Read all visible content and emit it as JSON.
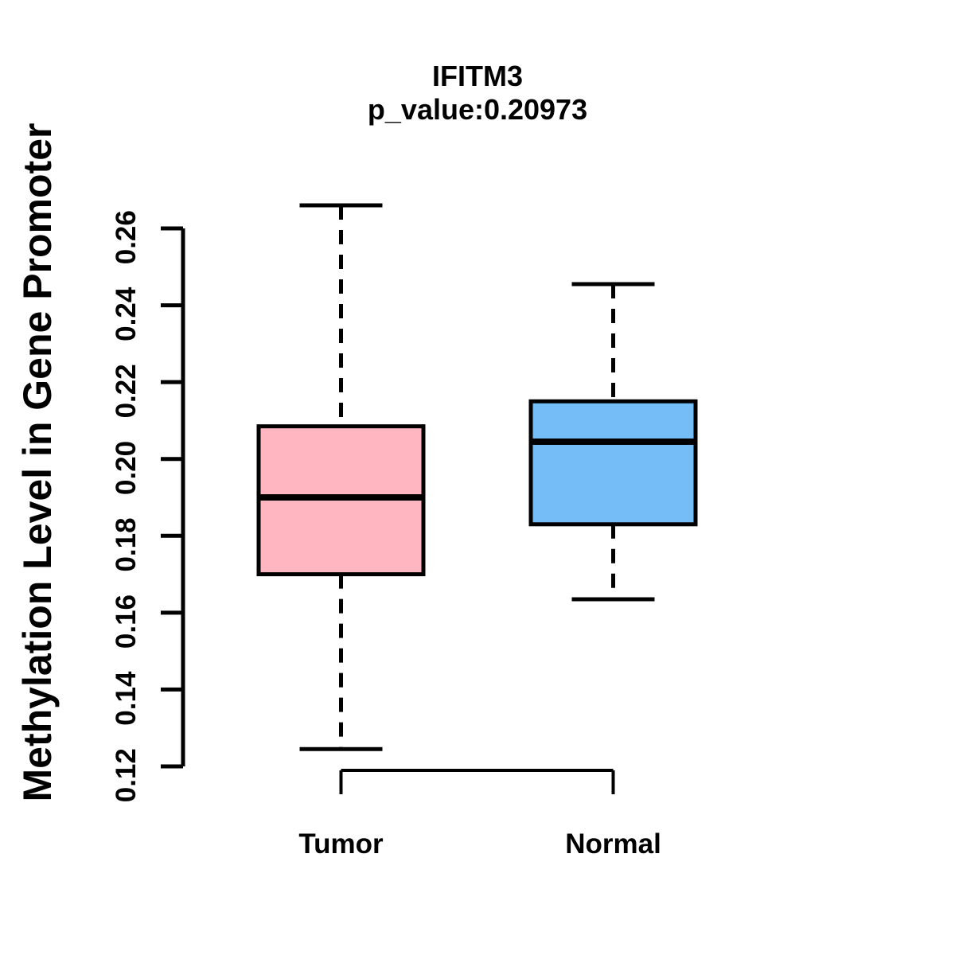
{
  "chart_data": {
    "type": "boxplot",
    "title": "IFITM3",
    "subtitle": "p_value:0.20973",
    "ylabel": "Methylation Level in Gene Promoter",
    "xlabel": "",
    "yticks": [
      0.12,
      0.14,
      0.16,
      0.18,
      0.2,
      0.22,
      0.24,
      0.26
    ],
    "ylim": [
      0.115,
      0.268
    ],
    "grid": false,
    "legend": "none",
    "groups": [
      {
        "label": "Tumor",
        "color": "#FFB6C1",
        "whisker_low": 0.1245,
        "q1": 0.17,
        "median": 0.19,
        "q3": 0.2085,
        "whisker_high": 0.266
      },
      {
        "label": "Normal",
        "color": "#74BDF7",
        "whisker_low": 0.1635,
        "q1": 0.183,
        "median": 0.2045,
        "q3": 0.215,
        "whisker_high": 0.2455
      }
    ],
    "colors": {
      "box_border": "#000000",
      "median_line": "#000000",
      "axis": "#000000",
      "text": "#000000",
      "background": "#ffffff"
    }
  }
}
